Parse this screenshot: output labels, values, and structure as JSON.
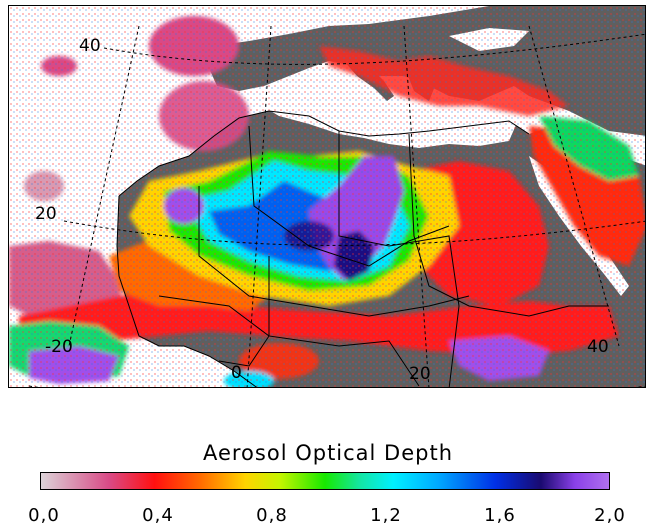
{
  "map": {
    "title": "",
    "grid_labels": {
      "lat_40": "40",
      "lat_20": "20",
      "lon_minus20": "-20",
      "lon_0": "0",
      "lon_20": "20",
      "lon_40": "40"
    }
  },
  "legend": {
    "title": "Aerosol Optical Depth",
    "range": [
      0.0,
      2.0
    ],
    "ticks": [
      "0,0",
      "0,4",
      "0,8",
      "1,2",
      "1,6",
      "2,0"
    ],
    "colors": [
      "#dcd3d8",
      "#d94a86",
      "#ff1010",
      "#ff6a00",
      "#ffd400",
      "#17e800",
      "#00f0ff",
      "#0030e6",
      "#1a0a70",
      "#b070f0"
    ]
  },
  "colors": {
    "land_no_data": "#5f5f5f",
    "no_data": "#ffffff"
  }
}
